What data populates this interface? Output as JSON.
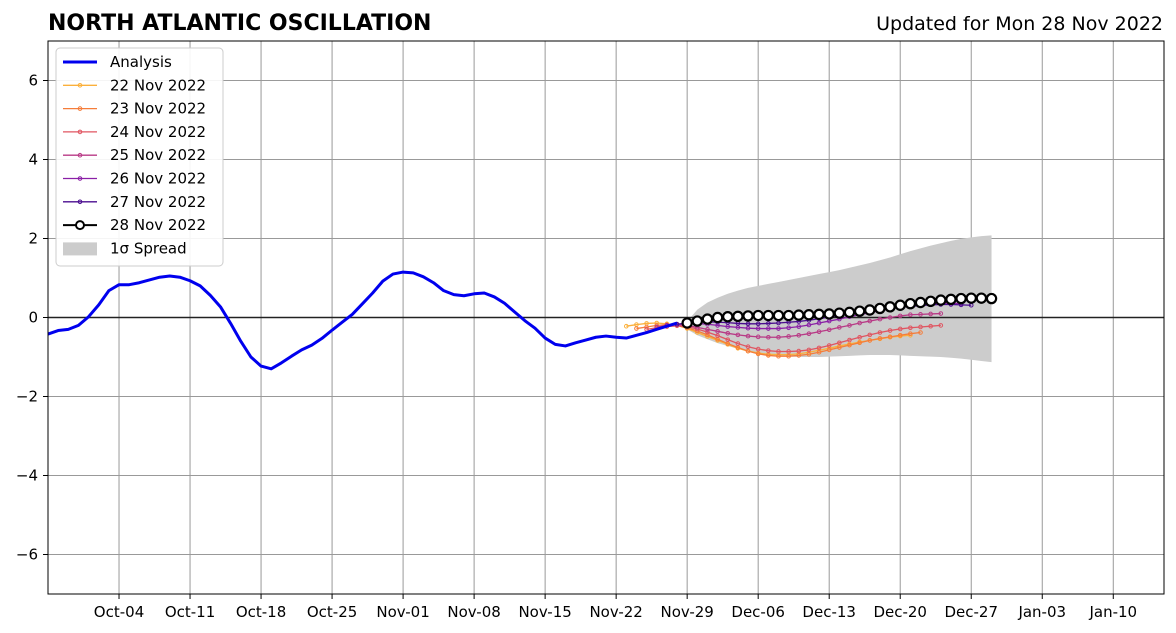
{
  "chart_data": {
    "type": "line",
    "title": "NORTH ATLANTIC OSCILLATION",
    "subtitle": "Updated for Mon 28 Nov 2022",
    "xlabel": "",
    "ylabel": "",
    "xlim": [
      "2022-09-27",
      "2023-01-15"
    ],
    "ylim": [
      -7,
      7
    ],
    "grid": true,
    "legend_position": "upper-left",
    "x_ticks": [
      "Oct-04",
      "Oct-11",
      "Oct-18",
      "Oct-25",
      "Nov-01",
      "Nov-08",
      "Nov-15",
      "Nov-22",
      "Nov-29",
      "Dec-06",
      "Dec-13",
      "Dec-20",
      "Dec-27",
      "Jan-03",
      "Jan-10"
    ],
    "y_ticks": [
      6,
      4,
      2,
      0,
      -2,
      -4,
      -6
    ],
    "y_tick_labels": [
      "6",
      "4",
      "2",
      "0",
      "−2",
      "−4",
      "−6"
    ],
    "zero_line": 0,
    "analysis": {
      "name": "Analysis",
      "color": "#0000ee",
      "start": "2022-09-27",
      "values": [
        -0.42,
        -0.33,
        -0.3,
        -0.2,
        0.02,
        0.32,
        0.68,
        0.83,
        0.83,
        0.88,
        0.95,
        1.02,
        1.05,
        1.02,
        0.93,
        0.8,
        0.56,
        0.27,
        -0.15,
        -0.6,
        -1.0,
        -1.23,
        -1.3,
        -1.15,
        -0.98,
        -0.82,
        -0.7,
        -0.53,
        -0.32,
        -0.12,
        0.08,
        0.35,
        0.62,
        0.92,
        1.1,
        1.15,
        1.13,
        1.03,
        0.88,
        0.68,
        0.58,
        0.55,
        0.6,
        0.62,
        0.52,
        0.36,
        0.14,
        -0.08,
        -0.27,
        -0.52,
        -0.68,
        -0.72,
        -0.64,
        -0.57,
        -0.5,
        -0.47,
        -0.5,
        -0.52,
        -0.45,
        -0.38,
        -0.3,
        -0.22,
        -0.14
      ]
    },
    "spread": {
      "name": "1σ Spread",
      "color": "#cccccc",
      "start": "2022-11-29",
      "upper": [
        -0.1,
        0.2,
        0.38,
        0.5,
        0.6,
        0.68,
        0.75,
        0.8,
        0.85,
        0.9,
        0.95,
        1.0,
        1.05,
        1.1,
        1.15,
        1.2,
        1.26,
        1.32,
        1.38,
        1.45,
        1.52,
        1.6,
        1.68,
        1.75,
        1.82,
        1.88,
        1.94,
        1.99,
        2.03,
        2.06,
        2.08
      ],
      "lower": [
        -0.3,
        -0.45,
        -0.55,
        -0.65,
        -0.72,
        -0.79,
        -0.85,
        -0.9,
        -0.94,
        -0.97,
        -0.99,
        -1.0,
        -1.0,
        -1.0,
        -0.99,
        -0.98,
        -0.97,
        -0.96,
        -0.95,
        -0.95,
        -0.95,
        -0.96,
        -0.97,
        -0.98,
        -0.99,
        -1.0,
        -1.02,
        -1.04,
        -1.07,
        -1.1,
        -1.13
      ]
    },
    "series": [
      {
        "name": "22 Nov 2022",
        "color": "#fbb03b",
        "start": "2022-11-23",
        "values": [
          -0.22,
          -0.18,
          -0.15,
          -0.14,
          -0.16,
          -0.2,
          -0.28,
          -0.38,
          -0.48,
          -0.58,
          -0.68,
          -0.78,
          -0.85,
          -0.9,
          -0.93,
          -0.94,
          -0.94,
          -0.92,
          -0.88,
          -0.83,
          -0.78,
          -0.72,
          -0.67,
          -0.62,
          -0.58,
          -0.54,
          -0.5,
          -0.47,
          -0.45
        ]
      },
      {
        "name": "23 Nov 2022",
        "color": "#f57d3a",
        "start": "2022-11-24",
        "values": [
          -0.28,
          -0.24,
          -0.2,
          -0.18,
          -0.2,
          -0.26,
          -0.34,
          -0.44,
          -0.55,
          -0.66,
          -0.76,
          -0.85,
          -0.92,
          -0.96,
          -0.98,
          -0.98,
          -0.96,
          -0.93,
          -0.88,
          -0.82,
          -0.76,
          -0.7,
          -0.64,
          -0.58,
          -0.53,
          -0.49,
          -0.45,
          -0.41,
          -0.38
        ]
      },
      {
        "name": "24 Nov 2022",
        "color": "#e05561",
        "start": "2022-11-25",
        "values": [
          -0.3,
          -0.26,
          -0.23,
          -0.21,
          -0.23,
          -0.29,
          -0.37,
          -0.46,
          -0.56,
          -0.66,
          -0.74,
          -0.8,
          -0.84,
          -0.86,
          -0.86,
          -0.85,
          -0.82,
          -0.77,
          -0.71,
          -0.64,
          -0.57,
          -0.5,
          -0.44,
          -0.38,
          -0.33,
          -0.29,
          -0.26,
          -0.24,
          -0.22,
          -0.2
        ]
      },
      {
        "name": "25 Nov 2022",
        "color": "#b83a86",
        "start": "2022-11-26",
        "values": [
          -0.24,
          -0.2,
          -0.18,
          -0.2,
          -0.25,
          -0.3,
          -0.35,
          -0.4,
          -0.44,
          -0.47,
          -0.49,
          -0.5,
          -0.5,
          -0.48,
          -0.45,
          -0.41,
          -0.36,
          -0.31,
          -0.25,
          -0.2,
          -0.14,
          -0.09,
          -0.04,
          0.0,
          0.04,
          0.07,
          0.08,
          0.09,
          0.1
        ]
      },
      {
        "name": "26 Nov 2022",
        "color": "#8a1fa6",
        "start": "2022-11-27",
        "values": [
          -0.2,
          -0.17,
          -0.15,
          -0.15,
          -0.17,
          -0.2,
          -0.23,
          -0.25,
          -0.27,
          -0.28,
          -0.28,
          -0.28,
          -0.26,
          -0.23,
          -0.19,
          -0.14,
          -0.09,
          -0.04,
          0.02,
          0.07,
          0.12,
          0.17,
          0.22,
          0.26,
          0.3,
          0.33,
          0.35,
          0.36,
          0.36,
          0.35
        ]
      },
      {
        "name": "27 Nov 2022",
        "color": "#4a0c8f",
        "start": "2022-11-28",
        "values": [
          -0.17,
          -0.14,
          -0.12,
          -0.11,
          -0.12,
          -0.13,
          -0.15,
          -0.16,
          -0.16,
          -0.15,
          -0.14,
          -0.12,
          -0.1,
          -0.07,
          -0.03,
          0.01,
          0.05,
          0.09,
          0.13,
          0.17,
          0.2,
          0.23,
          0.26,
          0.28,
          0.3,
          0.32,
          0.33,
          0.33,
          0.32,
          0.31
        ]
      },
      {
        "name": "28 Nov 2022",
        "color": "#000000",
        "start": "2022-11-29",
        "marker": "open-circle",
        "values": [
          -0.14,
          -0.09,
          -0.04,
          0.0,
          0.02,
          0.03,
          0.04,
          0.05,
          0.05,
          0.05,
          0.05,
          0.06,
          0.07,
          0.08,
          0.09,
          0.11,
          0.13,
          0.16,
          0.19,
          0.23,
          0.27,
          0.31,
          0.35,
          0.38,
          0.41,
          0.44,
          0.46,
          0.48,
          0.49,
          0.49,
          0.48
        ]
      }
    ],
    "legend": [
      "Analysis",
      "22 Nov 2022",
      "23 Nov 2022",
      "24 Nov 2022",
      "25 Nov 2022",
      "26 Nov 2022",
      "27 Nov 2022",
      "28 Nov 2022",
      "1σ Spread"
    ]
  }
}
